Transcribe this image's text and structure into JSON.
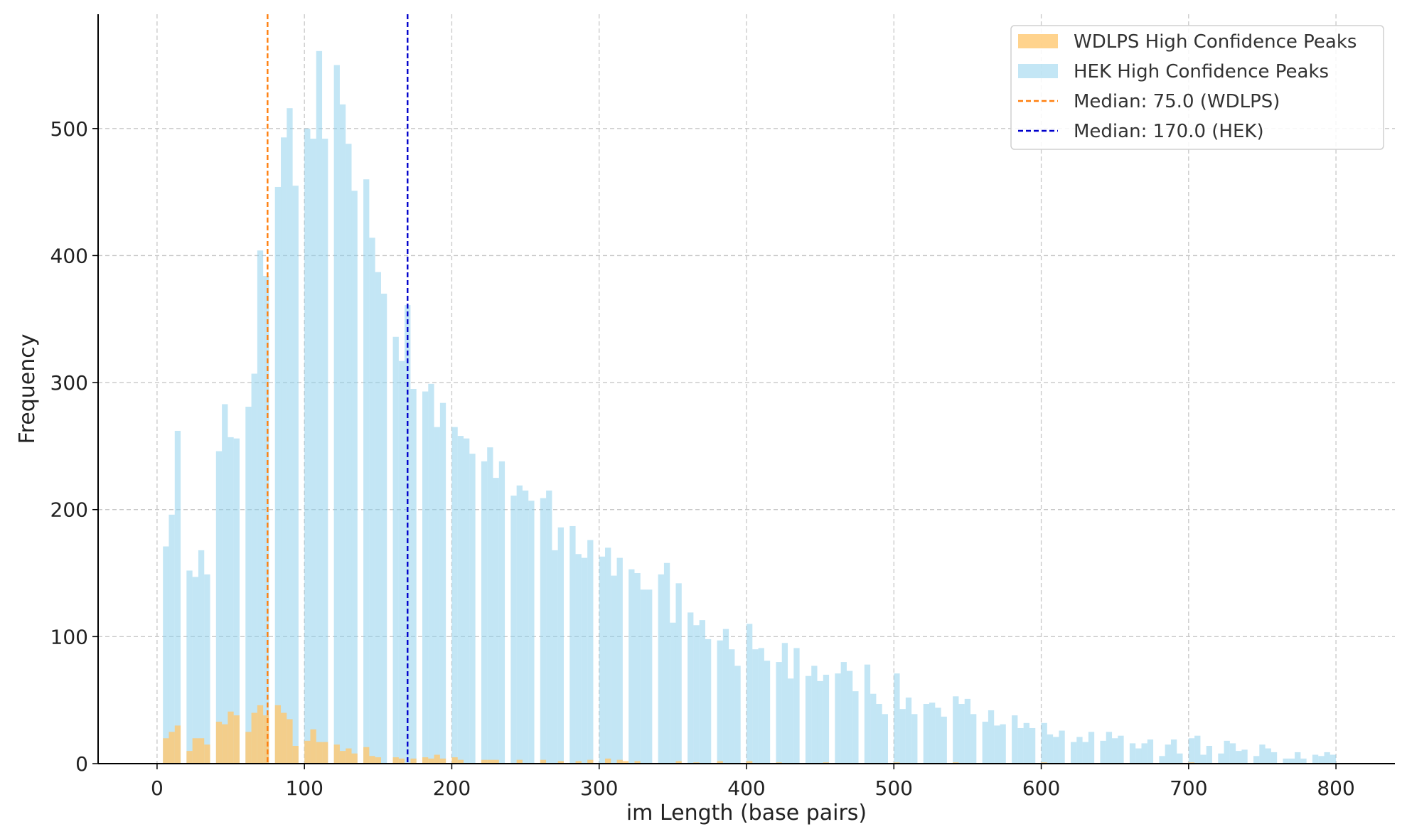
{
  "chart_data": {
    "type": "bar",
    "title": "",
    "xlabel": "im Length (base pairs)",
    "ylabel": "Frequency",
    "xlim": [
      -40,
      840
    ],
    "ylim": [
      0,
      590
    ],
    "xticks": [
      0,
      100,
      200,
      300,
      400,
      500,
      600,
      700,
      800
    ],
    "yticks": [
      0,
      100,
      200,
      300,
      400,
      500
    ],
    "grid": true,
    "legend_position": "top-right",
    "bin_width": 4,
    "series": [
      {
        "name": "WDLPS High Confidence Peaks",
        "color": "#ffc870",
        "opacity": 0.8,
        "points": [
          [
            4,
            20
          ],
          [
            8,
            25
          ],
          [
            12,
            30
          ],
          [
            20,
            10
          ],
          [
            24,
            20
          ],
          [
            28,
            20
          ],
          [
            32,
            15
          ],
          [
            40,
            33
          ],
          [
            44,
            31
          ],
          [
            48,
            41
          ],
          [
            52,
            38
          ],
          [
            60,
            25
          ],
          [
            64,
            40
          ],
          [
            68,
            46
          ],
          [
            72,
            38
          ],
          [
            80,
            46
          ],
          [
            84,
            40
          ],
          [
            88,
            35
          ],
          [
            92,
            14
          ],
          [
            100,
            18
          ],
          [
            104,
            27
          ],
          [
            108,
            17
          ],
          [
            112,
            17
          ],
          [
            120,
            15
          ],
          [
            124,
            10
          ],
          [
            128,
            12
          ],
          [
            132,
            8
          ],
          [
            140,
            13
          ],
          [
            144,
            6
          ],
          [
            148,
            5
          ],
          [
            160,
            5
          ],
          [
            164,
            4
          ],
          [
            172,
            4
          ],
          [
            180,
            5
          ],
          [
            184,
            4
          ],
          [
            188,
            7
          ],
          [
            192,
            4
          ],
          [
            200,
            5
          ],
          [
            204,
            3
          ],
          [
            220,
            3
          ],
          [
            224,
            3
          ],
          [
            228,
            3
          ],
          [
            244,
            3
          ],
          [
            260,
            3
          ],
          [
            272,
            2
          ],
          [
            284,
            2
          ],
          [
            292,
            3
          ],
          [
            304,
            4
          ],
          [
            312,
            3
          ],
          [
            316,
            2
          ],
          [
            324,
            2
          ],
          [
            352,
            2
          ],
          [
            364,
            1
          ],
          [
            380,
            2
          ],
          [
            400,
            2
          ],
          [
            420,
            1
          ],
          [
            452,
            1
          ],
          [
            500,
            1
          ],
          [
            540,
            1
          ],
          [
            600,
            1
          ],
          [
            700,
            1
          ]
        ]
      },
      {
        "name": "HEK High Confidence Peaks",
        "color": "#87ceeb",
        "opacity": 0.5,
        "points": [
          [
            4,
            171
          ],
          [
            8,
            196
          ],
          [
            12,
            262
          ],
          [
            20,
            152
          ],
          [
            24,
            147
          ],
          [
            28,
            168
          ],
          [
            32,
            149
          ],
          [
            40,
            246
          ],
          [
            44,
            283
          ],
          [
            48,
            257
          ],
          [
            52,
            256
          ],
          [
            60,
            281
          ],
          [
            64,
            307
          ],
          [
            68,
            404
          ],
          [
            72,
            384
          ],
          [
            80,
            454
          ],
          [
            84,
            493
          ],
          [
            88,
            516
          ],
          [
            92,
            455
          ],
          [
            100,
            500
          ],
          [
            104,
            492
          ],
          [
            108,
            561
          ],
          [
            112,
            492
          ],
          [
            120,
            550
          ],
          [
            124,
            519
          ],
          [
            128,
            488
          ],
          [
            132,
            451
          ],
          [
            140,
            460
          ],
          [
            144,
            414
          ],
          [
            148,
            387
          ],
          [
            152,
            370
          ],
          [
            160,
            336
          ],
          [
            164,
            317
          ],
          [
            168,
            361
          ],
          [
            172,
            295
          ],
          [
            180,
            293
          ],
          [
            184,
            299
          ],
          [
            188,
            265
          ],
          [
            192,
            284
          ],
          [
            200,
            265
          ],
          [
            204,
            258
          ],
          [
            208,
            256
          ],
          [
            212,
            244
          ],
          [
            220,
            238
          ],
          [
            224,
            249
          ],
          [
            228,
            225
          ],
          [
            232,
            238
          ],
          [
            240,
            211
          ],
          [
            244,
            219
          ],
          [
            248,
            215
          ],
          [
            252,
            207
          ],
          [
            260,
            209
          ],
          [
            264,
            215
          ],
          [
            268,
            168
          ],
          [
            272,
            186
          ],
          [
            280,
            187
          ],
          [
            284,
            165
          ],
          [
            288,
            162
          ],
          [
            292,
            176
          ],
          [
            300,
            163
          ],
          [
            304,
            170
          ],
          [
            308,
            148
          ],
          [
            312,
            162
          ],
          [
            320,
            153
          ],
          [
            324,
            150
          ],
          [
            328,
            137
          ],
          [
            332,
            137
          ],
          [
            340,
            149
          ],
          [
            344,
            158
          ],
          [
            348,
            111
          ],
          [
            352,
            142
          ],
          [
            360,
            119
          ],
          [
            364,
            109
          ],
          [
            368,
            113
          ],
          [
            372,
            98
          ],
          [
            380,
            97
          ],
          [
            384,
            106
          ],
          [
            388,
            90
          ],
          [
            392,
            77
          ],
          [
            400,
            110
          ],
          [
            404,
            90
          ],
          [
            408,
            91
          ],
          [
            412,
            81
          ],
          [
            420,
            80
          ],
          [
            424,
            95
          ],
          [
            428,
            67
          ],
          [
            432,
            91
          ],
          [
            440,
            69
          ],
          [
            444,
            77
          ],
          [
            448,
            65
          ],
          [
            452,
            70
          ],
          [
            460,
            71
          ],
          [
            464,
            80
          ],
          [
            468,
            73
          ],
          [
            472,
            57
          ],
          [
            480,
            78
          ],
          [
            484,
            55
          ],
          [
            488,
            47
          ],
          [
            492,
            39
          ],
          [
            500,
            71
          ],
          [
            504,
            43
          ],
          [
            508,
            52
          ],
          [
            512,
            39
          ],
          [
            520,
            47
          ],
          [
            524,
            48
          ],
          [
            528,
            44
          ],
          [
            532,
            37
          ],
          [
            540,
            53
          ],
          [
            544,
            47
          ],
          [
            548,
            51
          ],
          [
            552,
            39
          ],
          [
            560,
            33
          ],
          [
            564,
            42
          ],
          [
            568,
            30
          ],
          [
            572,
            31
          ],
          [
            580,
            38
          ],
          [
            584,
            28
          ],
          [
            588,
            32
          ],
          [
            592,
            28
          ],
          [
            600,
            32
          ],
          [
            604,
            23
          ],
          [
            608,
            21
          ],
          [
            612,
            26
          ],
          [
            620,
            17
          ],
          [
            624,
            21
          ],
          [
            628,
            17
          ],
          [
            632,
            25
          ],
          [
            640,
            18
          ],
          [
            644,
            25
          ],
          [
            648,
            20
          ],
          [
            652,
            22
          ],
          [
            660,
            16
          ],
          [
            664,
            12
          ],
          [
            668,
            16
          ],
          [
            672,
            19
          ],
          [
            680,
            6
          ],
          [
            684,
            15
          ],
          [
            688,
            19
          ],
          [
            692,
            8
          ],
          [
            700,
            20
          ],
          [
            704,
            22
          ],
          [
            708,
            7
          ],
          [
            712,
            14
          ],
          [
            720,
            8
          ],
          [
            724,
            18
          ],
          [
            728,
            16
          ],
          [
            732,
            10
          ],
          [
            736,
            11
          ],
          [
            744,
            6
          ],
          [
            748,
            15
          ],
          [
            752,
            12
          ],
          [
            756,
            9
          ],
          [
            764,
            4
          ],
          [
            768,
            4
          ],
          [
            772,
            9
          ],
          [
            776,
            4
          ],
          [
            784,
            7
          ],
          [
            788,
            6
          ],
          [
            792,
            9
          ],
          [
            796,
            7
          ]
        ]
      }
    ],
    "reference_lines": [
      {
        "name": "Median: 75.0 (WDLPS)",
        "x": 75.0,
        "color": "#ff7f0e",
        "style": "dashed"
      },
      {
        "name": "Median: 170.0 (HEK)",
        "x": 170.0,
        "color": "#0000cc",
        "style": "dashed"
      }
    ]
  }
}
